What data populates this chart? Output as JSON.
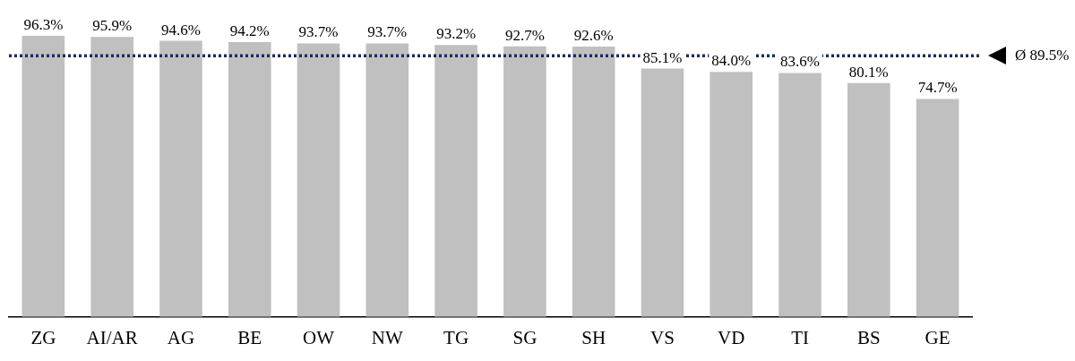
{
  "chart_data": {
    "type": "bar",
    "categories": [
      "ZG",
      "AI/AR",
      "AG",
      "BE",
      "OW",
      "NW",
      "TG",
      "SG",
      "SH",
      "VS",
      "VD",
      "TI",
      "BS",
      "GE"
    ],
    "values": [
      96.3,
      95.9,
      94.6,
      94.2,
      93.7,
      93.7,
      93.2,
      92.7,
      92.6,
      85.1,
      84.0,
      83.6,
      80.1,
      74.7
    ],
    "value_labels": [
      "96.3%",
      "95.9%",
      "94.6%",
      "94.2%",
      "93.7%",
      "93.7%",
      "93.2%",
      "92.7%",
      "92.6%",
      "85.1%",
      "84.0%",
      "83.6%",
      "80.1%",
      "74.7%"
    ],
    "color": "#c0c0c0",
    "tick_labels": "x",
    "grid": false,
    "ref_lines": [
      {
        "axis": "y",
        "value": 89.5,
        "label": "Ø 89.5%",
        "color": "#1f2a5c",
        "line_style": "dotted"
      }
    ]
  }
}
